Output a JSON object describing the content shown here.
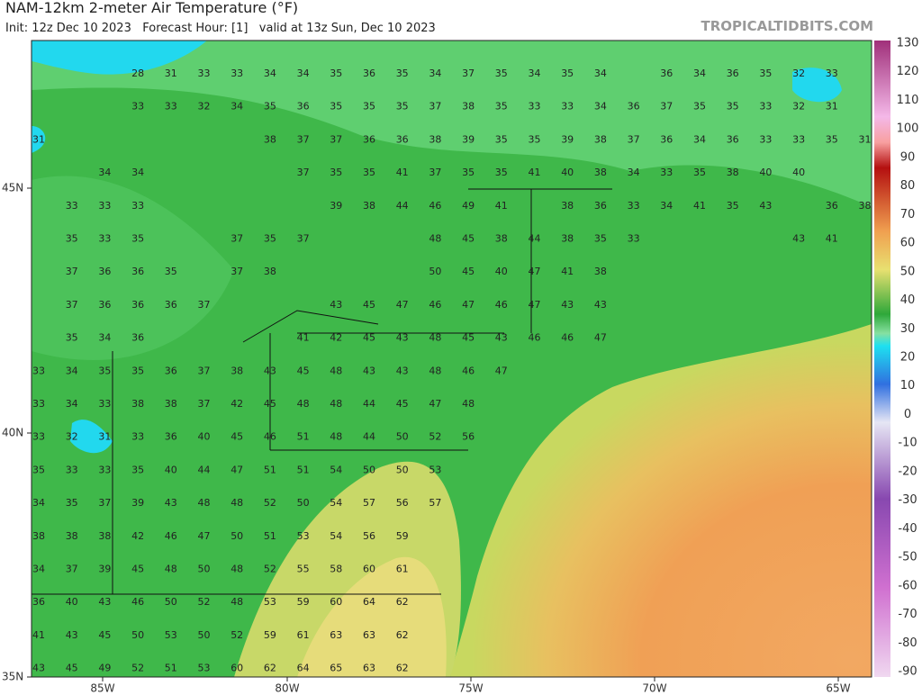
{
  "header": {
    "title": "NAM-12km 2-meter Air Temperature (°F)",
    "subtitle": "Init: 12z Dec 10 2023   Forecast Hour: [1]   valid at 13z Sun, Dec 10 2023",
    "site": "TROPICALTIDBITS.COM"
  },
  "axes": {
    "lat_labels": [
      "45N",
      "40N",
      "35N"
    ],
    "lon_labels": [
      "85W",
      "80W",
      "75W",
      "70W",
      "65W"
    ]
  },
  "colorbar": {
    "ticks": [
      130,
      120,
      110,
      100,
      90,
      80,
      70,
      60,
      50,
      40,
      30,
      20,
      10,
      0,
      -10,
      -20,
      -30,
      -40,
      -50,
      -60,
      -70,
      -80,
      -90
    ]
  },
  "stations": {
    "rows": [
      [
        null,
        null,
        null,
        28,
        31,
        33,
        33,
        34,
        34,
        35,
        36,
        35,
        34,
        37,
        35,
        34,
        35,
        34,
        null,
        36,
        34,
        36,
        35,
        32,
        33,
        null
      ],
      [
        null,
        null,
        null,
        33,
        33,
        32,
        34,
        35,
        36,
        35,
        35,
        35,
        37,
        38,
        35,
        33,
        33,
        34,
        36,
        37,
        35,
        35,
        33,
        32,
        31,
        null
      ],
      [
        31,
        null,
        null,
        null,
        null,
        null,
        null,
        38,
        37,
        37,
        36,
        36,
        38,
        39,
        35,
        35,
        39,
        38,
        37,
        36,
        34,
        36,
        33,
        33,
        35,
        31
      ],
      [
        null,
        null,
        34,
        34,
        null,
        null,
        null,
        null,
        37,
        35,
        35,
        41,
        37,
        35,
        35,
        41,
        40,
        38,
        34,
        33,
        35,
        38,
        40,
        40,
        null,
        null
      ],
      [
        null,
        33,
        33,
        33,
        null,
        null,
        null,
        null,
        null,
        39,
        38,
        44,
        46,
        49,
        41,
        null,
        38,
        36,
        33,
        34,
        41,
        35,
        43,
        null,
        36,
        38
      ],
      [
        null,
        35,
        33,
        35,
        null,
        null,
        37,
        35,
        37,
        null,
        null,
        null,
        48,
        45,
        38,
        44,
        38,
        35,
        33,
        null,
        null,
        null,
        null,
        43,
        41,
        null
      ],
      [
        null,
        37,
        36,
        36,
        35,
        null,
        37,
        38,
        null,
        null,
        null,
        null,
        50,
        45,
        40,
        47,
        41,
        38,
        null,
        null,
        null,
        null,
        null,
        null,
        null,
        null
      ],
      [
        null,
        37,
        36,
        36,
        36,
        37,
        null,
        null,
        null,
        43,
        45,
        47,
        46,
        47,
        46,
        47,
        43,
        43,
        null,
        null,
        null,
        null,
        null,
        null,
        null,
        null
      ],
      [
        null,
        35,
        34,
        36,
        null,
        null,
        null,
        null,
        41,
        42,
        45,
        43,
        48,
        45,
        43,
        46,
        46,
        47,
        null,
        null,
        null,
        null,
        null,
        null,
        null,
        null
      ],
      [
        33,
        34,
        35,
        35,
        36,
        37,
        38,
        43,
        45,
        48,
        43,
        43,
        48,
        46,
        47,
        null,
        null,
        null,
        null,
        null,
        null,
        null,
        null,
        null,
        null,
        null
      ],
      [
        33,
        34,
        33,
        38,
        38,
        37,
        42,
        45,
        48,
        48,
        44,
        45,
        47,
        48,
        null,
        null,
        null,
        null,
        null,
        null,
        null,
        null,
        null,
        null,
        null,
        null
      ],
      [
        33,
        32,
        31,
        33,
        36,
        40,
        45,
        46,
        51,
        48,
        44,
        50,
        52,
        56,
        null,
        null,
        null,
        null,
        null,
        null,
        null,
        null,
        null,
        null,
        null,
        null
      ],
      [
        35,
        33,
        33,
        35,
        40,
        44,
        47,
        51,
        51,
        54,
        50,
        50,
        53,
        null,
        null,
        null,
        null,
        null,
        null,
        null,
        null,
        null,
        null,
        null,
        null,
        null
      ],
      [
        34,
        35,
        37,
        39,
        43,
        48,
        48,
        52,
        50,
        54,
        57,
        56,
        57,
        null,
        null,
        null,
        null,
        null,
        null,
        null,
        null,
        null,
        null,
        null,
        null,
        null
      ],
      [
        38,
        38,
        38,
        42,
        46,
        47,
        50,
        51,
        53,
        54,
        56,
        59,
        null,
        null,
        null,
        null,
        null,
        null,
        null,
        null,
        null,
        null,
        null,
        null,
        null,
        null
      ],
      [
        34,
        37,
        39,
        45,
        48,
        50,
        48,
        52,
        55,
        58,
        60,
        61,
        null,
        null,
        null,
        null,
        null,
        null,
        null,
        null,
        null,
        null,
        null,
        null,
        null,
        null
      ],
      [
        36,
        40,
        43,
        46,
        50,
        52,
        48,
        53,
        59,
        60,
        64,
        62,
        null,
        null,
        null,
        null,
        null,
        null,
        null,
        null,
        null,
        null,
        null,
        null,
        null,
        null
      ],
      [
        41,
        43,
        45,
        50,
        53,
        50,
        52,
        59,
        61,
        63,
        63,
        62,
        null,
        null,
        null,
        null,
        null,
        null,
        null,
        null,
        null,
        null,
        null,
        null,
        null,
        null
      ],
      [
        43,
        45,
        49,
        52,
        51,
        53,
        60,
        62,
        64,
        65,
        63,
        62,
        null,
        null,
        null,
        null,
        null,
        null,
        null,
        null,
        null,
        null,
        null,
        null,
        null,
        null
      ]
    ]
  }
}
